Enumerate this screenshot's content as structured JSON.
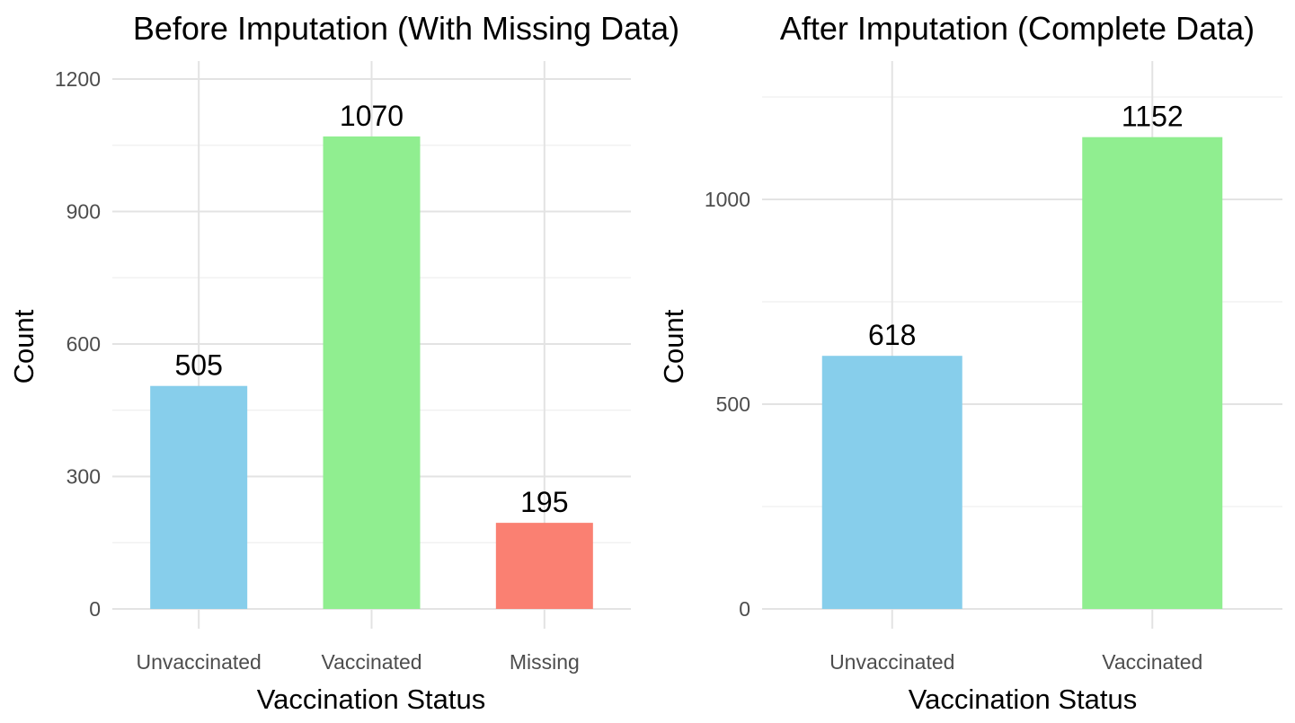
{
  "chart_data": [
    {
      "type": "bar",
      "title": "Before Imputation (With Missing Data)",
      "xlabel": "Vaccination Status",
      "ylabel": "Count",
      "categories": [
        "Unvaccinated",
        "Vaccinated",
        "Missing"
      ],
      "values": [
        505,
        1070,
        195
      ],
      "data_labels": [
        "505",
        "1070",
        "195"
      ],
      "colors": [
        "#87ceeb",
        "#90ee90",
        "#fa8072"
      ],
      "ylim": [
        0,
        1200
      ],
      "yticks": [
        0,
        300,
        600,
        900,
        1200
      ],
      "ytick_labels": [
        "0",
        "300",
        "600",
        "900",
        "1200"
      ],
      "grid": true,
      "legend": "none"
    },
    {
      "type": "bar",
      "title": "After Imputation (Complete Data)",
      "xlabel": "Vaccination Status",
      "ylabel": "Count",
      "categories": [
        "Unvaccinated",
        "Vaccinated"
      ],
      "values": [
        618,
        1152
      ],
      "data_labels": [
        "618",
        "1152"
      ],
      "colors": [
        "#87ceeb",
        "#90ee90"
      ],
      "ylim": [
        0,
        1250
      ],
      "yticks": [
        0,
        500,
        1000
      ],
      "ytick_labels": [
        "0",
        "500",
        "1000"
      ],
      "grid": true,
      "legend": "none"
    }
  ]
}
